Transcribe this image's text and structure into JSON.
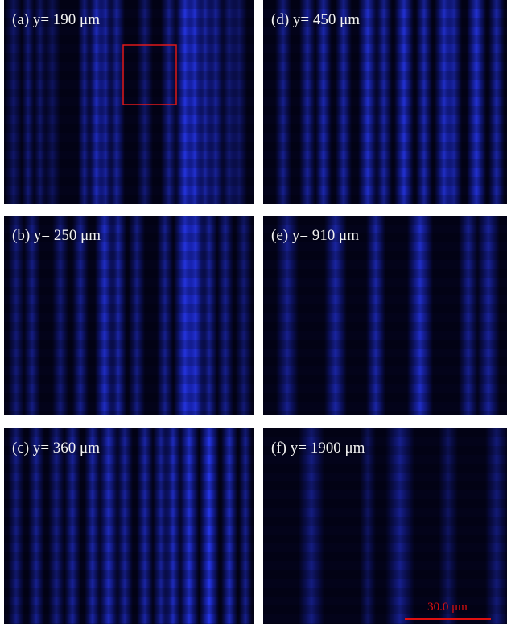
{
  "panels": [
    {
      "label": "(a) y= 190 μm"
    },
    {
      "label": "(b) y= 250 μm"
    },
    {
      "label": "(c) y= 360 μm"
    },
    {
      "label": "(d) y= 450 μm"
    },
    {
      "label": "(e) y= 910 μm"
    },
    {
      "label": "(f) y= 1900 μm"
    }
  ],
  "scale_bar": {
    "label": "30.0 μm"
  }
}
